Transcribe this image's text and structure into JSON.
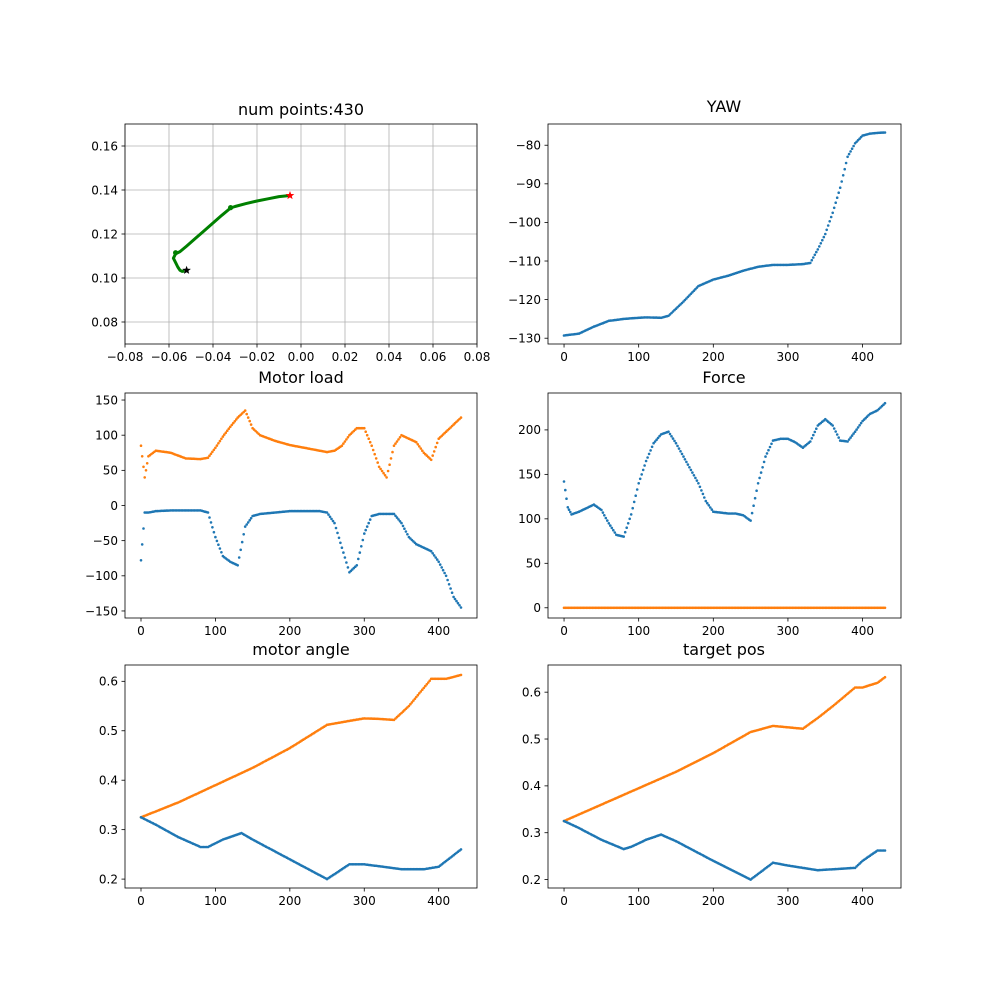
{
  "figure": {
    "background": "#ffffff"
  },
  "chart_data": [
    {
      "id": "traj",
      "type": "line",
      "title": "num points:430",
      "grid": true,
      "xlim": [
        -0.08,
        0.08
      ],
      "ylim": [
        0.07,
        0.17
      ],
      "xticks": [
        -0.08,
        -0.06,
        -0.04,
        -0.02,
        0.0,
        0.02,
        0.04,
        0.06,
        0.08
      ],
      "xtick_labels": [
        "−0.08",
        "−0.06",
        "−0.04",
        "−0.02",
        "0.00",
        "0.02",
        "0.04",
        "0.06",
        "0.08"
      ],
      "yticks": [
        0.08,
        0.1,
        0.12,
        0.14,
        0.16
      ],
      "ytick_labels": [
        "0.08",
        "0.10",
        "0.12",
        "0.14",
        "0.16"
      ],
      "series": [
        {
          "style": "line",
          "color": "#008000",
          "x": [
            -0.005,
            -0.01,
            -0.015,
            -0.02,
            -0.025,
            -0.03,
            -0.032,
            -0.036,
            -0.04,
            -0.044,
            -0.048,
            -0.052,
            -0.055,
            -0.057,
            -0.058,
            -0.057,
            -0.056,
            -0.055,
            -0.054,
            -0.053
          ],
          "y": [
            0.1375,
            0.137,
            0.136,
            0.135,
            0.1338,
            0.1325,
            0.1318,
            0.1285,
            0.125,
            0.1215,
            0.118,
            0.1145,
            0.112,
            0.111,
            0.109,
            0.107,
            0.105,
            0.1035,
            0.103,
            0.1032
          ]
        }
      ],
      "markers": [
        {
          "x": -0.005,
          "y": 0.1375,
          "shape": "star",
          "color": "#ff0000"
        },
        {
          "x": -0.052,
          "y": 0.1035,
          "shape": "star",
          "color": "#000000"
        },
        {
          "x": -0.032,
          "y": 0.132,
          "shape": "dot",
          "color": "#008000"
        },
        {
          "x": -0.057,
          "y": 0.1115,
          "shape": "dot",
          "color": "#008000"
        }
      ]
    },
    {
      "id": "yaw",
      "type": "scatter",
      "title": "YAW",
      "grid": false,
      "xlim": [
        -21.5,
        451.5
      ],
      "ylim": [
        -131.5,
        -74.5
      ],
      "xticks": [
        0,
        100,
        200,
        300,
        400
      ],
      "xtick_labels": [
        "0",
        "100",
        "200",
        "300",
        "400"
      ],
      "yticks": [
        -130,
        -120,
        -110,
        -100,
        -90,
        -80
      ],
      "ytick_labels": [
        "−130",
        "−120",
        "−110",
        "−100",
        "−90",
        "−80"
      ],
      "series": [
        {
          "color": "#1f77b4",
          "x": [
            0,
            20,
            40,
            60,
            80,
            100,
            110,
            130,
            140,
            160,
            180,
            200,
            220,
            240,
            260,
            280,
            300,
            320,
            330,
            340,
            350,
            360,
            370,
            380,
            390,
            400,
            410,
            420,
            430
          ],
          "y": [
            -129.3,
            -128.8,
            -127.0,
            -125.5,
            -125.0,
            -124.7,
            -124.6,
            -124.7,
            -124.2,
            -120.5,
            -116.5,
            -114.8,
            -113.8,
            -112.5,
            -111.5,
            -111.0,
            -111.0,
            -110.8,
            -110.5,
            -107.0,
            -103.0,
            -97.5,
            -91.0,
            -83.0,
            -79.5,
            -77.5,
            -77.0,
            -76.8,
            -76.7
          ]
        }
      ]
    },
    {
      "id": "load",
      "type": "scatter",
      "title": "Motor load",
      "grid": false,
      "xlim": [
        -21.5,
        451.5
      ],
      "ylim": [
        -160,
        160
      ],
      "xticks": [
        0,
        100,
        200,
        300,
        400
      ],
      "xtick_labels": [
        "0",
        "100",
        "200",
        "300",
        "400"
      ],
      "yticks": [
        -150,
        -100,
        -50,
        0,
        50,
        100,
        150
      ],
      "ytick_labels": [
        "−150",
        "−100",
        "−50",
        "0",
        "50",
        "100",
        "150"
      ],
      "series": [
        {
          "color": "#ff7f0e",
          "x": [
            0,
            5,
            10,
            20,
            40,
            60,
            80,
            90,
            100,
            110,
            120,
            130,
            140,
            150,
            160,
            180,
            200,
            220,
            240,
            250,
            260,
            270,
            280,
            290,
            300,
            310,
            320,
            330,
            340,
            350,
            360,
            370,
            380,
            390,
            400,
            410,
            420,
            430
          ],
          "y": [
            85,
            40,
            70,
            78,
            75,
            67,
            66,
            68,
            82,
            98,
            112,
            125,
            135,
            110,
            100,
            92,
            86,
            82,
            78,
            76,
            78,
            85,
            100,
            110,
            110,
            85,
            55,
            40,
            85,
            100,
            95,
            90,
            75,
            65,
            95,
            105,
            115,
            125
          ]
        },
        {
          "color": "#1f77b4",
          "x": [
            0,
            5,
            10,
            20,
            40,
            60,
            80,
            90,
            100,
            110,
            120,
            130,
            140,
            150,
            160,
            180,
            200,
            220,
            240,
            250,
            260,
            270,
            280,
            290,
            300,
            310,
            320,
            330,
            340,
            350,
            360,
            370,
            380,
            390,
            400,
            410,
            420,
            430
          ],
          "y": [
            -78,
            -10,
            -10,
            -8,
            -7,
            -7,
            -7,
            -10,
            -45,
            -72,
            -80,
            -85,
            -30,
            -15,
            -12,
            -10,
            -8,
            -8,
            -8,
            -10,
            -25,
            -60,
            -95,
            -85,
            -40,
            -15,
            -12,
            -12,
            -12,
            -25,
            -45,
            -55,
            -60,
            -65,
            -80,
            -100,
            -130,
            -145
          ]
        }
      ]
    },
    {
      "id": "force",
      "type": "scatter",
      "title": "Force",
      "grid": false,
      "xlim": [
        -21.5,
        451.5
      ],
      "ylim": [
        -11.5,
        241.5
      ],
      "xticks": [
        0,
        100,
        200,
        300,
        400
      ],
      "xtick_labels": [
        "0",
        "100",
        "200",
        "300",
        "400"
      ],
      "yticks": [
        0,
        50,
        100,
        150,
        200
      ],
      "ytick_labels": [
        "0",
        "50",
        "100",
        "150",
        "200"
      ],
      "series": [
        {
          "color": "#1f77b4",
          "x": [
            0,
            5,
            10,
            20,
            30,
            40,
            50,
            60,
            70,
            80,
            90,
            100,
            110,
            120,
            130,
            140,
            150,
            160,
            170,
            180,
            190,
            200,
            210,
            220,
            230,
            240,
            250,
            260,
            270,
            280,
            290,
            300,
            310,
            320,
            330,
            340,
            350,
            360,
            370,
            380,
            390,
            400,
            410,
            420,
            430
          ],
          "y": [
            142,
            113,
            105,
            108,
            112,
            116,
            110,
            95,
            82,
            80,
            105,
            140,
            165,
            185,
            195,
            198,
            185,
            170,
            155,
            140,
            120,
            108,
            107,
            106,
            106,
            104,
            98,
            140,
            170,
            188,
            190,
            190,
            186,
            180,
            187,
            205,
            212,
            205,
            188,
            187,
            198,
            210,
            218,
            222,
            230
          ]
        },
        {
          "color": "#ff7f0e",
          "x": [
            0,
            50,
            100,
            150,
            200,
            250,
            300,
            350,
            400,
            430
          ],
          "y": [
            0,
            0,
            0,
            0,
            0,
            0,
            0,
            0,
            0,
            0
          ]
        }
      ]
    },
    {
      "id": "angle",
      "type": "scatter",
      "title": "motor angle",
      "grid": false,
      "xlim": [
        -21.5,
        451.5
      ],
      "ylim": [
        0.182,
        0.633
      ],
      "xticks": [
        0,
        100,
        200,
        300,
        400
      ],
      "xtick_labels": [
        "0",
        "100",
        "200",
        "300",
        "400"
      ],
      "yticks": [
        0.2,
        0.3,
        0.4,
        0.5,
        0.6
      ],
      "ytick_labels": [
        "0.2",
        "0.3",
        "0.4",
        "0.5",
        "0.6"
      ],
      "series": [
        {
          "color": "#ff7f0e",
          "x": [
            0,
            50,
            100,
            150,
            200,
            250,
            280,
            300,
            320,
            340,
            360,
            390,
            400,
            410,
            430
          ],
          "y": [
            0.325,
            0.355,
            0.39,
            0.425,
            0.465,
            0.512,
            0.52,
            0.525,
            0.524,
            0.522,
            0.55,
            0.605,
            0.605,
            0.605,
            0.613
          ]
        },
        {
          "color": "#1f77b4",
          "x": [
            0,
            20,
            50,
            80,
            90,
            110,
            135,
            150,
            200,
            250,
            280,
            300,
            320,
            350,
            380,
            400,
            430
          ],
          "y": [
            0.325,
            0.31,
            0.285,
            0.265,
            0.265,
            0.28,
            0.293,
            0.28,
            0.24,
            0.2,
            0.23,
            0.23,
            0.226,
            0.22,
            0.22,
            0.225,
            0.26
          ]
        }
      ]
    },
    {
      "id": "target",
      "type": "scatter",
      "title": "target pos",
      "grid": false,
      "xlim": [
        -21.5,
        451.5
      ],
      "ylim": [
        0.182,
        0.658
      ],
      "xticks": [
        0,
        100,
        200,
        300,
        400
      ],
      "xtick_labels": [
        "0",
        "100",
        "200",
        "300",
        "400"
      ],
      "yticks": [
        0.2,
        0.3,
        0.4,
        0.5,
        0.6
      ],
      "ytick_labels": [
        "0.2",
        "0.3",
        "0.4",
        "0.5",
        "0.6"
      ],
      "series": [
        {
          "color": "#ff7f0e",
          "x": [
            0,
            50,
            100,
            150,
            200,
            250,
            280,
            300,
            320,
            340,
            360,
            390,
            400,
            410,
            420,
            430
          ],
          "y": [
            0.325,
            0.36,
            0.395,
            0.43,
            0.47,
            0.515,
            0.528,
            0.525,
            0.522,
            0.545,
            0.57,
            0.61,
            0.61,
            0.615,
            0.62,
            0.632
          ]
        },
        {
          "color": "#1f77b4",
          "x": [
            0,
            20,
            50,
            80,
            90,
            110,
            130,
            150,
            200,
            250,
            280,
            300,
            320,
            340,
            360,
            390,
            400,
            420,
            430
          ],
          "y": [
            0.325,
            0.31,
            0.285,
            0.265,
            0.27,
            0.285,
            0.296,
            0.282,
            0.24,
            0.2,
            0.236,
            0.23,
            0.225,
            0.22,
            0.222,
            0.225,
            0.24,
            0.262,
            0.262
          ]
        }
      ]
    }
  ]
}
